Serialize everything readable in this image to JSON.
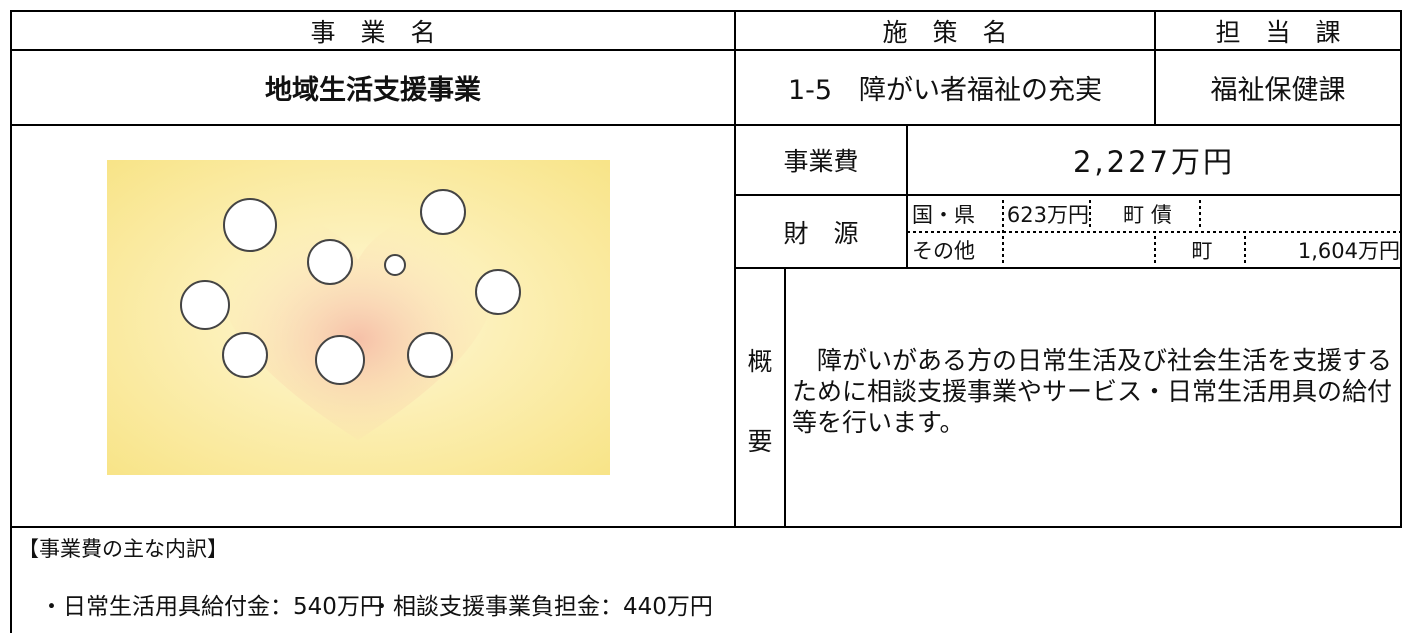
{
  "header": {
    "project_label": "事　業　名",
    "policy_label": "施　策　名",
    "dept_label": "担　当　課"
  },
  "row": {
    "project": "地域生活支援事業",
    "policy": "1-5　障がい者福祉の充実",
    "dept": "福祉保健課"
  },
  "cost": {
    "label": "事業費",
    "value": "2,227万円"
  },
  "funding": {
    "label": "財　源",
    "national_label": "国・県",
    "national_value": "623万円",
    "bond_label": "町 債",
    "other_label": "その他",
    "town_label": "町",
    "town_value": "1,604万円"
  },
  "summary": {
    "label_top": "概",
    "label_bottom": "要",
    "text": "　障がいがある方の日常生活及び社会生活を支援するために相談支援事業やサービス・日常生活用具の給付等を行います。"
  },
  "breakdown": {
    "title": "【事業費の主な内訳】",
    "items": [
      "・日常生活用具給付金：540万円",
      "・相談支援事業負担金：440万円"
    ]
  }
}
